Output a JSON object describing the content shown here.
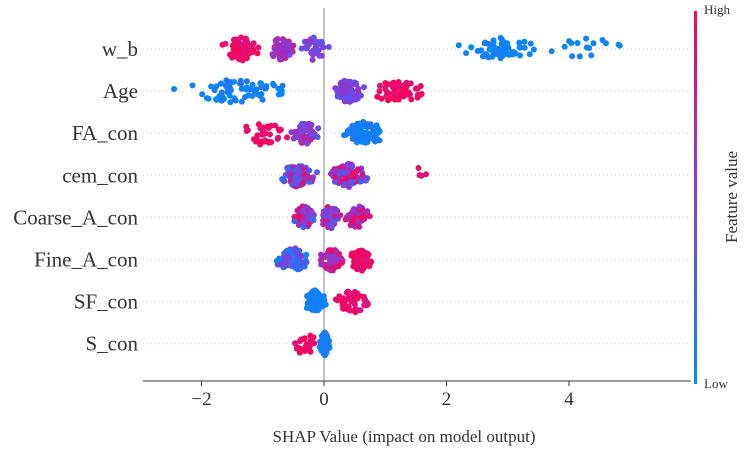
{
  "chart_data": {
    "type": "scatter",
    "subtype": "shap-beeswarm",
    "xlabel": "SHAP Value (impact on model output)",
    "xlim": [
      -2.95,
      5.35
    ],
    "xticks": [
      -2,
      0,
      2,
      4
    ],
    "xtick_labels": [
      "−2",
      "0",
      "2",
      "4"
    ],
    "features": [
      {
        "name": "w_b",
        "clusters": [
          {
            "range": [
              -1.75,
              -0.95
            ],
            "count": 90,
            "feature_value": [
              0.85,
              1.0
            ]
          },
          {
            "range": [
              -0.95,
              -0.45
            ],
            "count": 55,
            "feature_value": [
              0.5,
              0.8
            ]
          },
          {
            "range": [
              -0.45,
              0.15
            ],
            "count": 35,
            "feature_value": [
              0.35,
              0.6
            ]
          },
          {
            "range": [
              2.1,
              3.6
            ],
            "count": 60,
            "feature_value": [
              0.0,
              0.12
            ]
          },
          {
            "range": [
              3.6,
              5.1
            ],
            "count": 16,
            "feature_value": [
              0.0,
              0.1
            ]
          }
        ]
      },
      {
        "name": "Age",
        "clusters": [
          {
            "range": [
              -2.6,
              -0.3
            ],
            "count": 70,
            "feature_value": [
              0.0,
              0.15
            ]
          },
          {
            "range": [
              0.1,
              0.7
            ],
            "count": 95,
            "feature_value": [
              0.35,
              0.6
            ]
          },
          {
            "range": [
              0.6,
              1.8
            ],
            "count": 55,
            "feature_value": [
              0.85,
              1.0
            ]
          }
        ]
      },
      {
        "name": "FA_con",
        "clusters": [
          {
            "range": [
              -1.55,
              -0.45
            ],
            "count": 35,
            "feature_value": [
              0.85,
              1.0
            ]
          },
          {
            "range": [
              -0.6,
              -0.05
            ],
            "count": 70,
            "feature_value": [
              0.35,
              0.8
            ]
          },
          {
            "range": [
              0.2,
              1.1
            ],
            "count": 85,
            "feature_value": [
              0.0,
              0.15
            ]
          }
        ]
      },
      {
        "name": "cem_con",
        "clusters": [
          {
            "range": [
              -0.8,
              -0.05
            ],
            "count": 85,
            "feature_value": [
              0.15,
              0.9
            ]
          },
          {
            "range": [
              0.05,
              0.75
            ],
            "count": 110,
            "feature_value": [
              0.25,
              1.0
            ]
          },
          {
            "range": [
              1.5,
              1.7
            ],
            "count": 4,
            "feature_value": [
              0.85,
              1.0
            ]
          }
        ]
      },
      {
        "name": "Coarse_A_con",
        "clusters": [
          {
            "range": [
              -0.55,
              -0.1
            ],
            "count": 80,
            "feature_value": [
              0.2,
              1.0
            ]
          },
          {
            "range": [
              -0.1,
              0.3
            ],
            "count": 60,
            "feature_value": [
              0.2,
              0.9
            ]
          },
          {
            "range": [
              0.3,
              0.8
            ],
            "count": 60,
            "feature_value": [
              0.5,
              1.0
            ]
          }
        ]
      },
      {
        "name": "Fine_A_con",
        "clusters": [
          {
            "range": [
              -0.85,
              -0.15
            ],
            "count": 70,
            "feature_value": [
              0.0,
              0.6
            ]
          },
          {
            "range": [
              -0.1,
              0.35
            ],
            "count": 70,
            "feature_value": [
              0.5,
              1.0
            ]
          },
          {
            "range": [
              0.35,
              0.85
            ],
            "count": 55,
            "feature_value": [
              0.85,
              1.0
            ]
          }
        ]
      },
      {
        "name": "SF_con",
        "clusters": [
          {
            "range": [
              -0.35,
              0.05
            ],
            "count": 95,
            "feature_value": [
              0.0,
              0.15
            ]
          },
          {
            "range": [
              0.05,
              0.9
            ],
            "count": 55,
            "feature_value": [
              0.8,
              1.0
            ]
          }
        ]
      },
      {
        "name": "S_con",
        "clusters": [
          {
            "range": [
              -0.08,
              0.1
            ],
            "count": 110,
            "feature_value": [
              0.0,
              0.15
            ]
          },
          {
            "range": [
              -0.6,
              -0.05
            ],
            "count": 25,
            "feature_value": [
              0.85,
              1.0
            ]
          }
        ]
      }
    ],
    "colorbar": {
      "label": "Feature value",
      "high_label": "High",
      "low_label": "Low",
      "low_color": "#008afb",
      "mid_color": "#7e40e0",
      "high_color": "#ff0052"
    },
    "zero_line_color": "#999999"
  }
}
